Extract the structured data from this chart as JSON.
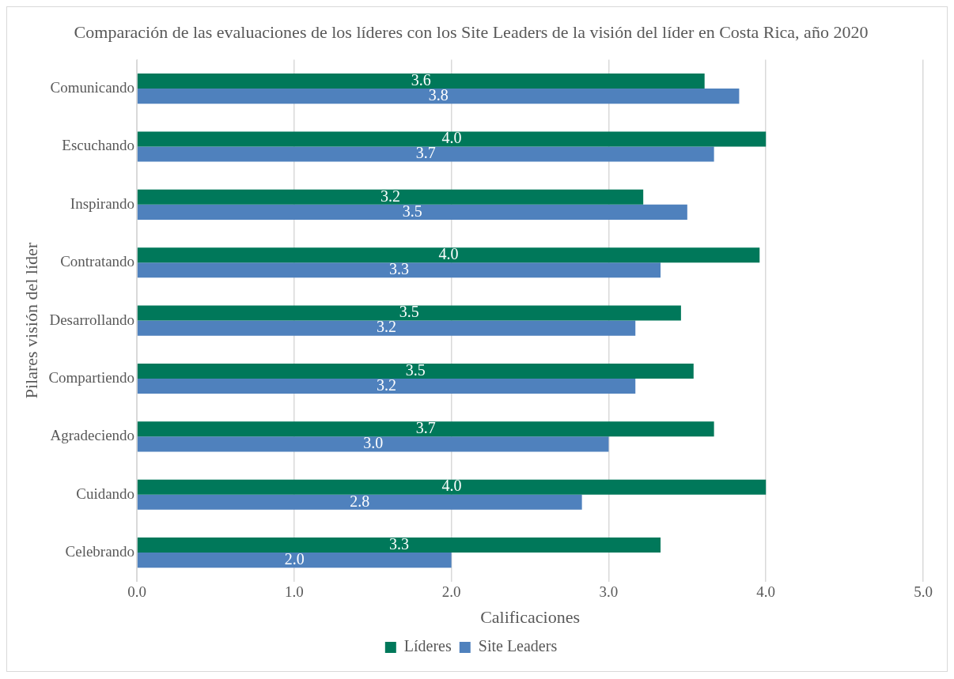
{
  "chart_data": {
    "type": "bar",
    "orientation": "horizontal",
    "title": "Comparación de las evaluaciones de los líderes con los Site Leaders de la visión del líder en Costa Rica, año 2020",
    "xlabel": "Calificaciones",
    "ylabel": "Pilares visión del líder",
    "categories": [
      "Comunicando",
      "Escuchando",
      "Inspirando",
      "Contratando",
      "Desarrollando",
      "Compartiendo",
      "Agradeciendo",
      "Cuidando",
      "Celebrando"
    ],
    "series": [
      {
        "name": "Líderes",
        "color": "#00785a",
        "values": [
          3.61,
          4.0,
          3.22,
          3.96,
          3.46,
          3.54,
          3.67,
          4.0,
          3.33
        ],
        "value_labels": [
          "3.6",
          "4.0",
          "3.2",
          "4.0",
          "3.5",
          "3.5",
          "3.7",
          "4.0",
          "3.3"
        ]
      },
      {
        "name": "Site Leaders",
        "color": "#4f81bd",
        "values": [
          3.83,
          3.67,
          3.5,
          3.33,
          3.17,
          3.17,
          3.0,
          2.83,
          2.0
        ],
        "value_labels": [
          "3.8",
          "3.7",
          "3.5",
          "3.3",
          "3.2",
          "3.2",
          "3.0",
          "2.8",
          "2.0"
        ]
      }
    ],
    "xlim": [
      0,
      5
    ],
    "xticks": [
      {
        "value": 0,
        "label": "0.0"
      },
      {
        "value": 1,
        "label": "1.0"
      },
      {
        "value": 2,
        "label": "2.0"
      },
      {
        "value": 3,
        "label": "3.0"
      },
      {
        "value": 4,
        "label": "4.0"
      },
      {
        "value": 5,
        "label": "5.0"
      }
    ],
    "grid": "x",
    "legend": "bottom"
  }
}
